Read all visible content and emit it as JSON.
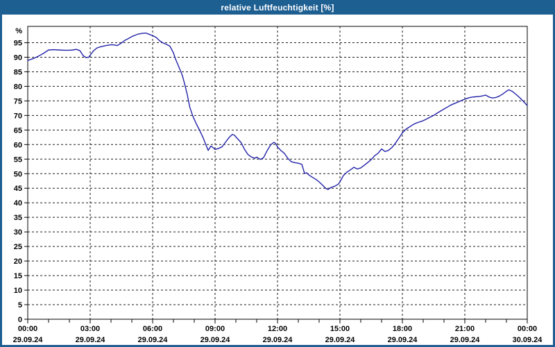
{
  "window": {
    "title": "relative Luftfeuchtigkeit [%]"
  },
  "colors": {
    "titlebar_bg": "#1E5F92",
    "titlebar_text": "#FFFFFF",
    "frame_border": "#1E5F92",
    "plot_background": "#FFFFFF",
    "grid_line": "#1A1A1A",
    "axis_line": "#000000",
    "series_line": "#2121A8",
    "label_text": "#000000"
  },
  "chart_data": {
    "type": "line",
    "title": "relative Luftfeuchtigkeit [%]",
    "grid": "dashed",
    "legend": "none",
    "y_axis": {
      "unit_label": "%",
      "min": 0,
      "max": 100.6,
      "tick_step": 5,
      "tick_values": [
        0,
        5,
        10,
        15,
        20,
        25,
        30,
        35,
        40,
        45,
        50,
        55,
        60,
        65,
        70,
        75,
        80,
        85,
        90,
        95
      ]
    },
    "x_axis": {
      "hours_span": 24,
      "minor_tick_every_hours": 1,
      "major_tick_every_hours": 3,
      "major_tick_times": [
        "00:00",
        "03:00",
        "06:00",
        "09:00",
        "12:00",
        "15:00",
        "18:00",
        "21:00",
        "00:00"
      ],
      "major_tick_dates": [
        "29.09.24",
        "29.09.24",
        "29.09.24",
        "29.09.24",
        "29.09.24",
        "29.09.24",
        "29.09.24",
        "29.09.24",
        "30.09.24"
      ]
    },
    "series": [
      {
        "name": "relative Luftfeuchtigkeit",
        "unit": "%",
        "points": [
          [
            0.0,
            88.9
          ],
          [
            0.25,
            89.5
          ],
          [
            0.5,
            90.3
          ],
          [
            0.75,
            91.3
          ],
          [
            1.0,
            92.5
          ],
          [
            1.25,
            92.6
          ],
          [
            1.5,
            92.5
          ],
          [
            1.75,
            92.4
          ],
          [
            2.0,
            92.4
          ],
          [
            2.17,
            92.5
          ],
          [
            2.33,
            92.7
          ],
          [
            2.5,
            92.3
          ],
          [
            2.67,
            90.5
          ],
          [
            2.8,
            89.9
          ],
          [
            2.93,
            90.0
          ],
          [
            3.0,
            90.7
          ],
          [
            3.17,
            92.3
          ],
          [
            3.33,
            93.2
          ],
          [
            3.5,
            93.6
          ],
          [
            3.75,
            94.0
          ],
          [
            4.0,
            94.3
          ],
          [
            4.17,
            94.2
          ],
          [
            4.3,
            94.0
          ],
          [
            4.5,
            94.9
          ],
          [
            4.67,
            95.8
          ],
          [
            4.83,
            96.4
          ],
          [
            5.0,
            97.1
          ],
          [
            5.17,
            97.6
          ],
          [
            5.33,
            98.0
          ],
          [
            5.5,
            98.2
          ],
          [
            5.67,
            98.3
          ],
          [
            5.83,
            97.9
          ],
          [
            6.0,
            97.4
          ],
          [
            6.17,
            96.8
          ],
          [
            6.33,
            95.7
          ],
          [
            6.5,
            94.9
          ],
          [
            6.67,
            94.4
          ],
          [
            6.83,
            93.8
          ],
          [
            7.0,
            91.5
          ],
          [
            7.1,
            89.4
          ],
          [
            7.27,
            86.5
          ],
          [
            7.43,
            83.7
          ],
          [
            7.55,
            80.5
          ],
          [
            7.67,
            77.0
          ],
          [
            7.78,
            73.0
          ],
          [
            7.93,
            69.8
          ],
          [
            8.1,
            67.1
          ],
          [
            8.27,
            64.7
          ],
          [
            8.43,
            62.3
          ],
          [
            8.55,
            60.1
          ],
          [
            8.67,
            58.0
          ],
          [
            8.8,
            59.5
          ],
          [
            8.93,
            58.8
          ],
          [
            9.0,
            58.3
          ],
          [
            9.17,
            58.7
          ],
          [
            9.33,
            59.2
          ],
          [
            9.5,
            60.8
          ],
          [
            9.67,
            62.4
          ],
          [
            9.83,
            63.5
          ],
          [
            9.93,
            63.2
          ],
          [
            10.08,
            62.0
          ],
          [
            10.25,
            60.7
          ],
          [
            10.42,
            58.3
          ],
          [
            10.58,
            56.6
          ],
          [
            10.75,
            55.7
          ],
          [
            10.92,
            55.3
          ],
          [
            11.0,
            55.7
          ],
          [
            11.17,
            54.9
          ],
          [
            11.33,
            55.5
          ],
          [
            11.5,
            57.9
          ],
          [
            11.67,
            59.9
          ],
          [
            11.83,
            60.8
          ],
          [
            11.92,
            60.3
          ],
          [
            12.0,
            59.2
          ],
          [
            12.17,
            57.9
          ],
          [
            12.33,
            57.0
          ],
          [
            12.5,
            55.2
          ],
          [
            12.67,
            54.1
          ],
          [
            12.83,
            53.8
          ],
          [
            13.0,
            53.6
          ],
          [
            13.17,
            53.2
          ],
          [
            13.3,
            50.1
          ],
          [
            13.4,
            50.3
          ],
          [
            13.5,
            49.6
          ],
          [
            13.67,
            48.8
          ],
          [
            13.83,
            48.1
          ],
          [
            14.0,
            47.2
          ],
          [
            14.17,
            46.0
          ],
          [
            14.33,
            44.9
          ],
          [
            14.43,
            44.6
          ],
          [
            14.58,
            45.3
          ],
          [
            14.75,
            45.7
          ],
          [
            14.92,
            46.4
          ],
          [
            15.0,
            47.2
          ],
          [
            15.17,
            49.4
          ],
          [
            15.33,
            50.5
          ],
          [
            15.5,
            51.3
          ],
          [
            15.67,
            52.2
          ],
          [
            15.83,
            51.6
          ],
          [
            16.0,
            52.0
          ],
          [
            16.17,
            52.9
          ],
          [
            16.33,
            53.8
          ],
          [
            16.5,
            54.8
          ],
          [
            16.67,
            56.2
          ],
          [
            16.83,
            57.0
          ],
          [
            17.0,
            58.5
          ],
          [
            17.17,
            57.6
          ],
          [
            17.33,
            58.0
          ],
          [
            17.5,
            59.0
          ],
          [
            17.67,
            60.5
          ],
          [
            17.83,
            62.2
          ],
          [
            18.0,
            64.0
          ],
          [
            18.17,
            65.3
          ],
          [
            18.33,
            66.0
          ],
          [
            18.5,
            66.8
          ],
          [
            18.67,
            67.4
          ],
          [
            18.83,
            67.8
          ],
          [
            19.0,
            68.2
          ],
          [
            19.17,
            68.8
          ],
          [
            19.33,
            69.4
          ],
          [
            19.5,
            70.0
          ],
          [
            19.67,
            70.8
          ],
          [
            19.83,
            71.5
          ],
          [
            20.0,
            72.2
          ],
          [
            20.17,
            72.9
          ],
          [
            20.33,
            73.6
          ],
          [
            20.5,
            74.1
          ],
          [
            20.67,
            74.6
          ],
          [
            20.83,
            75.1
          ],
          [
            21.0,
            75.6
          ],
          [
            21.17,
            76.0
          ],
          [
            21.33,
            76.3
          ],
          [
            21.5,
            76.4
          ],
          [
            21.67,
            76.5
          ],
          [
            21.83,
            76.7
          ],
          [
            22.0,
            77.0
          ],
          [
            22.17,
            76.3
          ],
          [
            22.33,
            76.0
          ],
          [
            22.5,
            76.2
          ],
          [
            22.67,
            76.7
          ],
          [
            22.83,
            77.4
          ],
          [
            23.0,
            78.3
          ],
          [
            23.12,
            78.8
          ],
          [
            23.3,
            78.2
          ],
          [
            23.5,
            77.0
          ],
          [
            23.67,
            75.9
          ],
          [
            23.83,
            74.7
          ],
          [
            24.0,
            73.4
          ]
        ]
      }
    ]
  }
}
